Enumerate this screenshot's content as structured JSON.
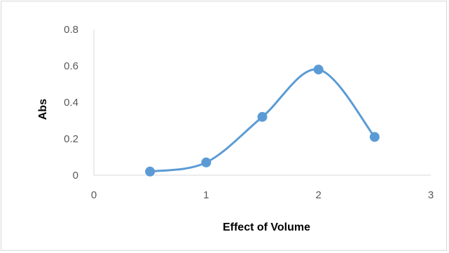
{
  "chart_data": {
    "type": "scatter",
    "style": "smoothed line with markers",
    "title": "",
    "xlabel": "Effect of Volume",
    "ylabel": "Abs",
    "xlim": [
      0,
      3
    ],
    "ylim": [
      0,
      0.8
    ],
    "x_ticks": [
      "0",
      "1",
      "2",
      "3"
    ],
    "y_ticks": [
      "0",
      "0.2",
      "0.4",
      "0.6",
      "0.8"
    ],
    "grid": false,
    "legend": "none",
    "series": [
      {
        "color": "#5b9bd5",
        "points": [
          {
            "x": 0.5,
            "y": 0.02
          },
          {
            "x": 1.0,
            "y": 0.07
          },
          {
            "x": 1.5,
            "y": 0.32
          },
          {
            "x": 2.0,
            "y": 0.58
          },
          {
            "x": 2.5,
            "y": 0.21
          }
        ]
      }
    ]
  }
}
